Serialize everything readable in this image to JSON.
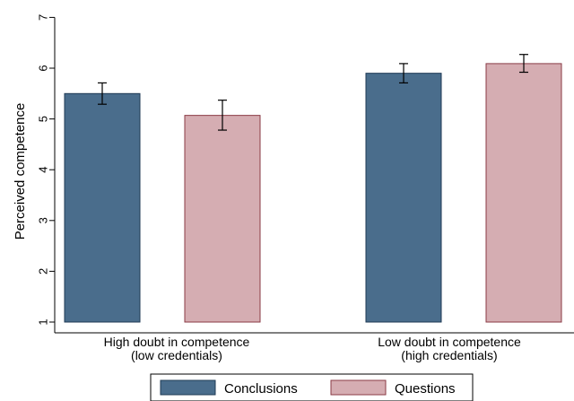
{
  "chart_data": {
    "type": "bar",
    "ylabel": "Perceived competence",
    "ylim": [
      1,
      7
    ],
    "yticks": [
      1,
      2,
      3,
      4,
      5,
      6,
      7
    ],
    "grid": false,
    "legend_position": "bottom",
    "categories": [
      {
        "lines": [
          "High doubt in competence",
          "(low credentials)"
        ]
      },
      {
        "lines": [
          "Low doubt in competence",
          "(high credentials)"
        ]
      }
    ],
    "series": [
      {
        "name": "Conclusions",
        "color": "#4a6d8c",
        "stroke": "#1f3a55",
        "values": [
          5.5,
          5.9
        ],
        "err_low": [
          5.29,
          5.71
        ],
        "err_high": [
          5.71,
          6.09
        ]
      },
      {
        "name": "Questions",
        "color": "#d5adb2",
        "stroke": "#8a3a44",
        "values": [
          5.07,
          6.09
        ],
        "err_low": [
          4.78,
          5.92
        ],
        "err_high": [
          5.37,
          6.27
        ]
      }
    ]
  }
}
